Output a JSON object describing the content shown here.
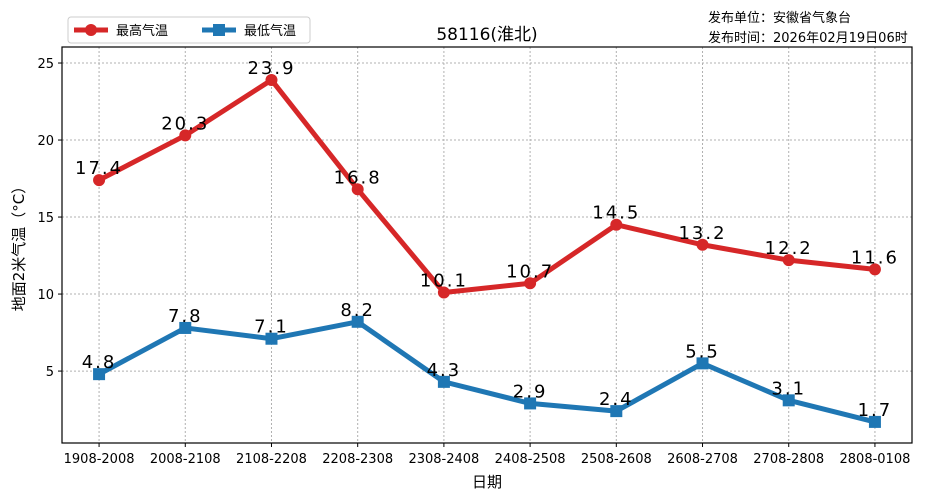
{
  "publisher": {
    "unit": "发布单位：安徽省气象台",
    "time": "发布时间：2026年02月19日06时"
  },
  "chart_data": {
    "type": "line",
    "title": "58116(淮北)",
    "xlabel": "日期",
    "ylabel": "地面2米气温（°C）",
    "categories": [
      "1908-2008",
      "2008-2108",
      "2108-2208",
      "2208-2308",
      "2308-2408",
      "2408-2508",
      "2508-2608",
      "2608-2708",
      "2708-2808",
      "2808-0108"
    ],
    "yticks": [
      5,
      10,
      15,
      20,
      25
    ],
    "ylim": [
      0.33,
      26.04
    ],
    "grid": true,
    "legend_position": "top-left",
    "series": [
      {
        "name": "最高气温",
        "color": "#d62728",
        "marker": "circle",
        "values": [
          17.4,
          20.3,
          23.9,
          16.8,
          10.1,
          10.7,
          14.5,
          13.2,
          12.2,
          11.6
        ]
      },
      {
        "name": "最低气温",
        "color": "#1f77b4",
        "marker": "square",
        "values": [
          4.8,
          7.8,
          7.1,
          8.2,
          4.3,
          2.9,
          2.4,
          5.5,
          3.1,
          1.7
        ]
      }
    ]
  }
}
